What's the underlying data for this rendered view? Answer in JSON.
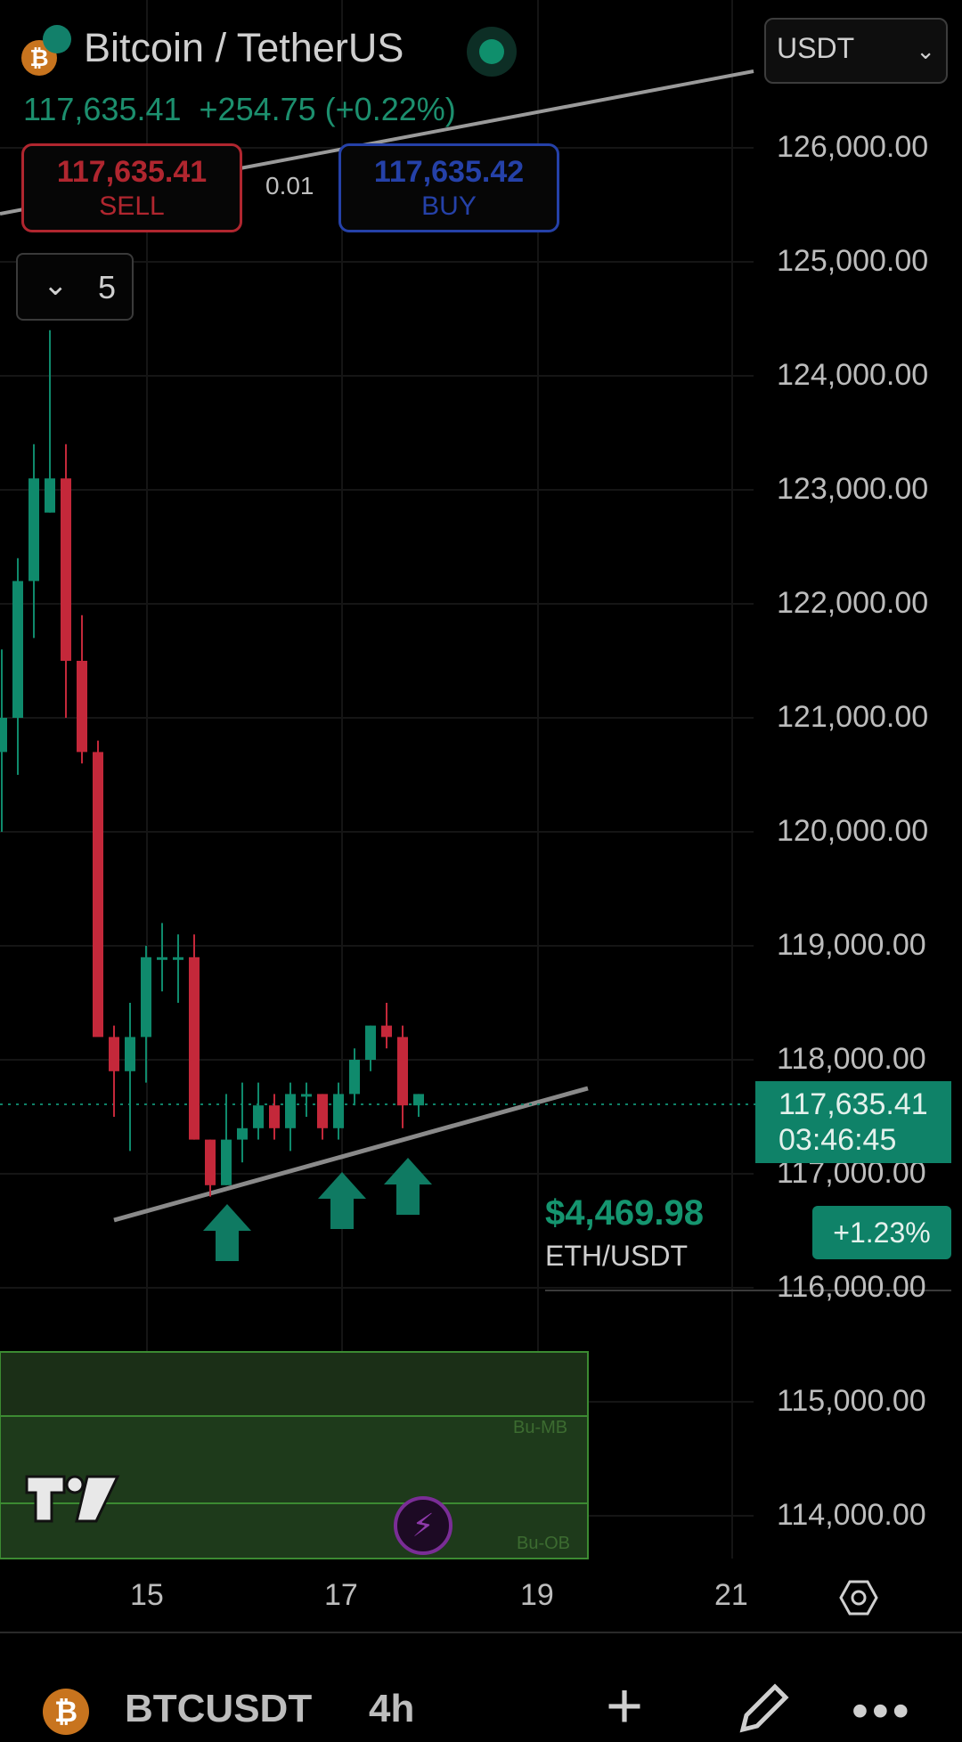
{
  "header": {
    "title": "Bitcoin / TetherUS",
    "btc_icon": "₿",
    "last_price": "117,635.41",
    "change": "+254.75 (+0.22%)",
    "currency": "USDT"
  },
  "trade": {
    "sell_price": "117,635.41",
    "sell_label": "SELL",
    "spread": "0.01",
    "buy_price": "117,635.42",
    "buy_label": "BUY"
  },
  "indicators_toggle": {
    "count": "5"
  },
  "price_axis": {
    "labels": [
      "126,000.00",
      "125,000.00",
      "124,000.00",
      "123,000.00",
      "122,000.00",
      "121,000.00",
      "120,000.00",
      "119,000.00",
      "118,000.00",
      "117,000.00",
      "116,000.00",
      "115,000.00",
      "114,000.00"
    ],
    "last_price": "117,635.41",
    "countdown": "03:46:45"
  },
  "time_axis": {
    "labels": [
      "15",
      "17",
      "19",
      "21"
    ]
  },
  "comparison": {
    "price": "$4,469.98",
    "pair": "ETH/USDT",
    "change": "+1.23%"
  },
  "zones": {
    "mb_label": "Bu-MB",
    "ob_label": "Bu-OB"
  },
  "colors": {
    "up": "#0f8a6c",
    "down": "#c4283a",
    "zone": "#1d3a1a",
    "trendline": "#8a8a8a"
  },
  "chart_data": {
    "type": "candlestick",
    "interval": "4h",
    "ylim": [
      113600,
      126800
    ],
    "xticks": [
      "15",
      "17",
      "19",
      "21"
    ],
    "candles": [
      {
        "o": 120700,
        "h": 121600,
        "l": 120000,
        "c": 121000
      },
      {
        "o": 121000,
        "h": 122400,
        "l": 120500,
        "c": 122200
      },
      {
        "o": 122200,
        "h": 123400,
        "l": 121700,
        "c": 123100
      },
      {
        "o": 122800,
        "h": 124400,
        "l": 122800,
        "c": 123100
      },
      {
        "o": 123100,
        "h": 123400,
        "l": 121000,
        "c": 121500
      },
      {
        "o": 121500,
        "h": 121900,
        "l": 120600,
        "c": 120700
      },
      {
        "o": 120700,
        "h": 120800,
        "l": 118300,
        "c": 118200
      },
      {
        "o": 118200,
        "h": 118300,
        "l": 117500,
        "c": 117900
      },
      {
        "o": 117900,
        "h": 118500,
        "l": 117200,
        "c": 118200
      },
      {
        "o": 118200,
        "h": 119000,
        "l": 117800,
        "c": 118900
      },
      {
        "o": 118900,
        "h": 119200,
        "l": 118600,
        "c": 118900
      },
      {
        "o": 118900,
        "h": 119100,
        "l": 118500,
        "c": 118900
      },
      {
        "o": 118900,
        "h": 119100,
        "l": 117300,
        "c": 117300
      },
      {
        "o": 117300,
        "h": 117300,
        "l": 116800,
        "c": 116900
      },
      {
        "o": 116900,
        "h": 117700,
        "l": 116900,
        "c": 117300
      },
      {
        "o": 117300,
        "h": 117800,
        "l": 117100,
        "c": 117400
      },
      {
        "o": 117400,
        "h": 117800,
        "l": 117300,
        "c": 117600
      },
      {
        "o": 117600,
        "h": 117700,
        "l": 117300,
        "c": 117400
      },
      {
        "o": 117400,
        "h": 117800,
        "l": 117200,
        "c": 117700
      },
      {
        "o": 117700,
        "h": 117800,
        "l": 117500,
        "c": 117700
      },
      {
        "o": 117700,
        "h": 117700,
        "l": 117300,
        "c": 117400
      },
      {
        "o": 117400,
        "h": 117800,
        "l": 117300,
        "c": 117700
      },
      {
        "o": 117700,
        "h": 118100,
        "l": 117600,
        "c": 118000
      },
      {
        "o": 118000,
        "h": 118300,
        "l": 117900,
        "c": 118300
      },
      {
        "o": 118300,
        "h": 118500,
        "l": 118100,
        "c": 118200
      },
      {
        "o": 118200,
        "h": 118300,
        "l": 117400,
        "c": 117600
      },
      {
        "o": 117600,
        "h": 117700,
        "l": 117500,
        "c": 117700
      }
    ]
  }
}
